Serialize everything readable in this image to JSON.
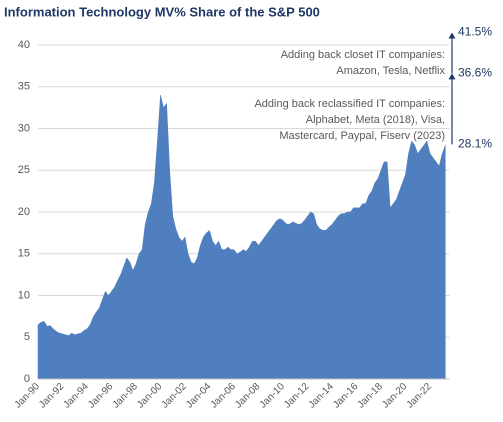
{
  "chart_data": {
    "type": "area",
    "title": "Information Technology MV% Share of the S&P 500",
    "categories": [
      "Jan-90",
      null,
      null,
      null,
      null,
      null,
      null,
      null,
      "Jan-92",
      null,
      null,
      null,
      null,
      null,
      null,
      null,
      "Jan-94",
      null,
      null,
      null,
      null,
      null,
      null,
      null,
      "Jan-96",
      null,
      null,
      null,
      null,
      null,
      null,
      null,
      "Jan-98",
      null,
      null,
      null,
      null,
      null,
      null,
      null,
      "Jan-00",
      null,
      null,
      null,
      null,
      null,
      null,
      null,
      "Jan-02",
      null,
      null,
      null,
      null,
      null,
      null,
      null,
      "Jan-04",
      null,
      null,
      null,
      null,
      null,
      null,
      null,
      "Jan-06",
      null,
      null,
      null,
      null,
      null,
      null,
      null,
      "Jan-08",
      null,
      null,
      null,
      null,
      null,
      null,
      null,
      "Jan-10",
      null,
      null,
      null,
      null,
      null,
      null,
      null,
      "Jan-12",
      null,
      null,
      null,
      null,
      null,
      null,
      null,
      "Jan-14",
      null,
      null,
      null,
      null,
      null,
      null,
      null,
      "Jan-16",
      null,
      null,
      null,
      null,
      null,
      null,
      null,
      "Jan-18",
      null,
      null,
      null,
      null,
      null,
      null,
      null,
      "Jan-20",
      null,
      null,
      null,
      null,
      null,
      null,
      null,
      "Jan-22",
      null,
      null,
      null,
      null,
      null
    ],
    "values": [
      6.5,
      6.8,
      6.9,
      6.3,
      6.4,
      6.0,
      5.7,
      5.5,
      5.4,
      5.3,
      5.2,
      5.5,
      5.3,
      5.4,
      5.5,
      5.8,
      6.0,
      6.5,
      7.4,
      8.0,
      8.5,
      9.5,
      10.5,
      10.0,
      10.5,
      11.0,
      11.8,
      12.5,
      13.5,
      14.5,
      14.0,
      13.0,
      13.8,
      15.0,
      15.5,
      18.5,
      20,
      21,
      23.5,
      28.5,
      34.0,
      32.5,
      33.0,
      25,
      19.5,
      18.0,
      17.0,
      16.5,
      17.0,
      15.0,
      14.0,
      13.8,
      14.5,
      16.0,
      17.0,
      17.5,
      17.8,
      16.5,
      16.0,
      16.5,
      15.5,
      15.5,
      15.8,
      15.5,
      15.5,
      15.0,
      15.2,
      15.5,
      15.3,
      15.8,
      16.5,
      16.5,
      16.0,
      16.5,
      17.0,
      17.5,
      18.0,
      18.5,
      19.0,
      19.2,
      19.0,
      18.6,
      18.5,
      18.8,
      18.7,
      18.5,
      18.6,
      19.0,
      19.5,
      20.0,
      19.8,
      18.5,
      18.0,
      17.8,
      17.8,
      18.2,
      18.5,
      19.0,
      19.5,
      19.8,
      19.8,
      20.0,
      20.0,
      20.5,
      20.5,
      20.5,
      21.0,
      21.0,
      22.0,
      22.5,
      23.5,
      24.0,
      25.0,
      26.0,
      26.0,
      20.5,
      21.0,
      21.5,
      22.5,
      23.5,
      24.5,
      27.0,
      28.5,
      28.0,
      27.0,
      27.5,
      28.0,
      28.5,
      27.0,
      26.5,
      26.0,
      25.5,
      27.0,
      28.0
    ],
    "color": "#4f7fbf",
    "ylim": [
      0,
      40
    ],
    "yticks": [
      0,
      5,
      10,
      15,
      20,
      25,
      30,
      35,
      40
    ],
    "grid": true,
    "markers": [
      {
        "value": 41.5,
        "label": "41.5%"
      },
      {
        "value": 36.6,
        "label": "36.6%"
      },
      {
        "value": 28.1,
        "label": "28.1%"
      }
    ],
    "annotations": [
      {
        "lines": [
          "Adding back closet IT companies:",
          "Amazon, Tesla, Netflix"
        ]
      },
      {
        "lines": [
          "Adding back reclassified IT companies:",
          "Alphabet, Meta (2018), Visa,",
          "Mastercard, Paypal, Fiserv (2023)"
        ]
      }
    ]
  }
}
